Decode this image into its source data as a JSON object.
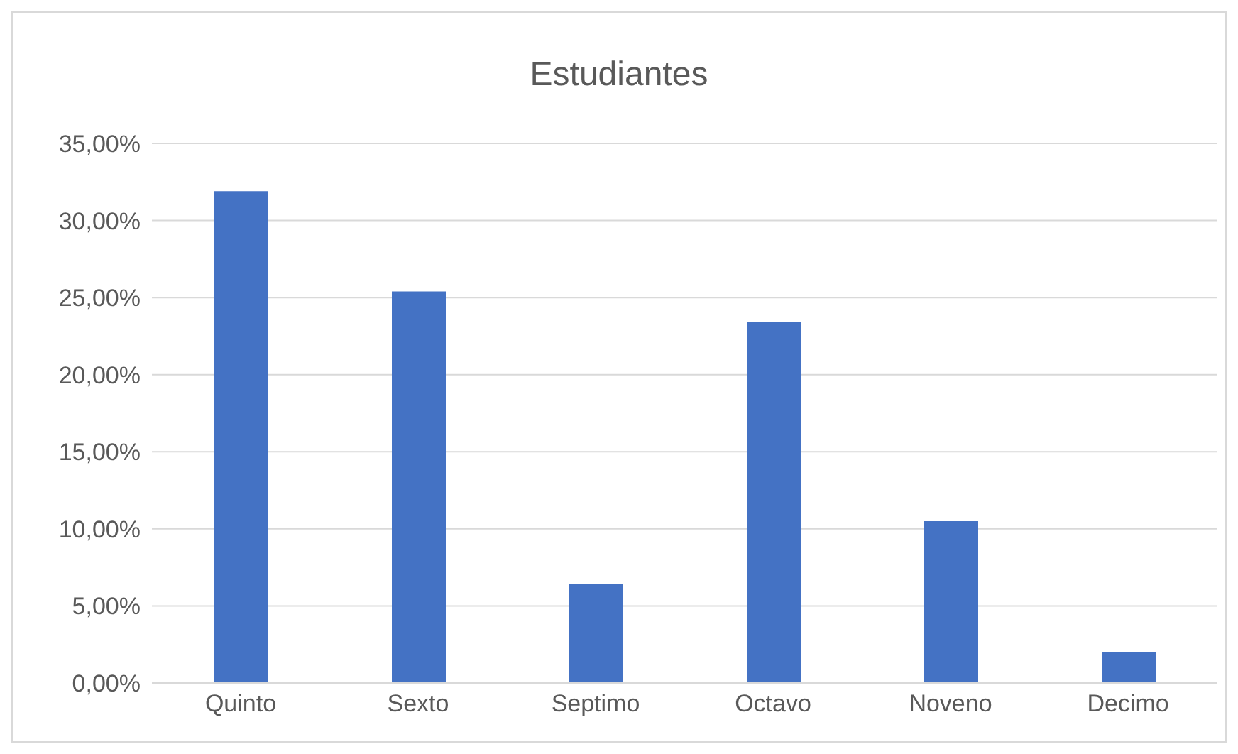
{
  "chart_data": {
    "type": "bar",
    "title": "Estudiantes",
    "categories": [
      "Quinto",
      "Sexto",
      "Septimo",
      "Octavo",
      "Noveno",
      "Decimo"
    ],
    "values": [
      31.9,
      25.4,
      6.4,
      23.4,
      10.5,
      2.0
    ],
    "color": "#4472c4",
    "ylim": [
      0,
      35
    ],
    "yticks": [
      {
        "value": 0,
        "label": "0,00%"
      },
      {
        "value": 5,
        "label": "5,00%"
      },
      {
        "value": 10,
        "label": "10,00%"
      },
      {
        "value": 15,
        "label": "15,00%"
      },
      {
        "value": 20,
        "label": "20,00%"
      },
      {
        "value": 25,
        "label": "25,00%"
      },
      {
        "value": 30,
        "label": "30,00%"
      },
      {
        "value": 35,
        "label": "35,00%"
      }
    ],
    "grid": "y",
    "legend": false
  }
}
